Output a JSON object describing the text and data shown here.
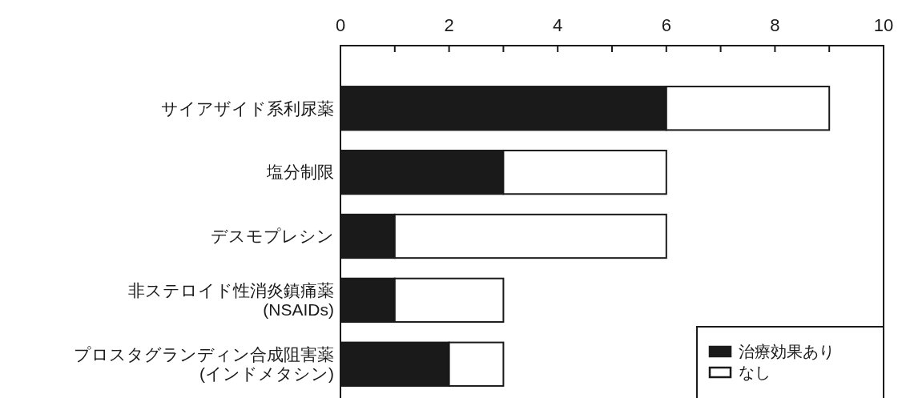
{
  "chart_data": {
    "type": "bar",
    "orientation": "horizontal",
    "stacked": true,
    "categories": [
      "サイアザイド系利尿薬",
      "塩分制限",
      "デスモプレシン",
      "非ステロイド性消炎鎮痛薬\n(NSAIDs)",
      "プロスタグランディン合成阻害薬\n(インドメタシン)"
    ],
    "series": [
      {
        "name": "治療効果あり",
        "color": "#1a1a1a",
        "values": [
          6,
          3,
          1,
          1,
          2
        ]
      },
      {
        "name": "なし",
        "color": "#ffffff",
        "values": [
          3,
          3,
          5,
          2,
          1
        ]
      }
    ],
    "xlim": [
      0,
      10
    ],
    "xticks": [
      0,
      {
        "value": 1,
        "label": null
      },
      2,
      {
        "value": 3,
        "label": null
      },
      4,
      {
        "value": 5,
        "label": null
      },
      6,
      {
        "value": 7,
        "label": null
      },
      8,
      {
        "value": 9,
        "label": null
      },
      10
    ],
    "legend": "bottom right",
    "grid": false
  }
}
